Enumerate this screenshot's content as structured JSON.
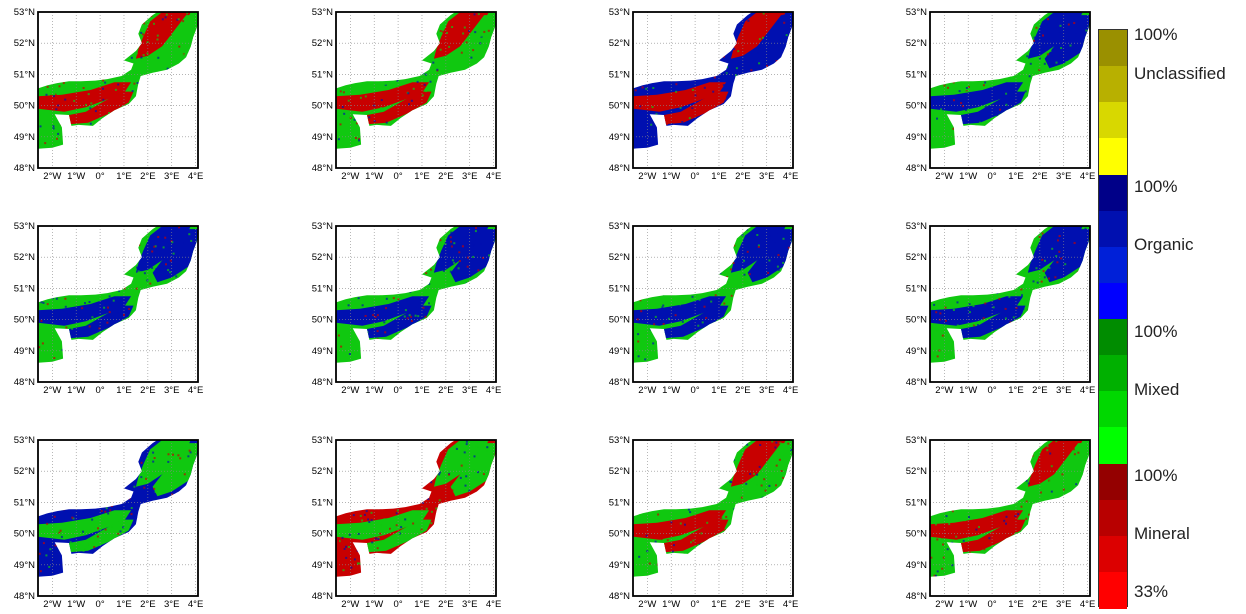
{
  "map_axes": {
    "lat_labels": [
      "53°N",
      "52°N",
      "51°N",
      "50°N",
      "49°N",
      "48°N"
    ],
    "lon_labels": [
      "2°W",
      "1°W",
      "0°",
      "1°E",
      "2°E",
      "3°E",
      "4°E"
    ]
  },
  "panels": [
    {
      "row": 1,
      "col": 1,
      "dominant": "mineral",
      "secondary": "mixed"
    },
    {
      "row": 1,
      "col": 2,
      "dominant": "mineral",
      "secondary": "mixed"
    },
    {
      "row": 1,
      "col": 3,
      "dominant": "mineral",
      "secondary": "organic"
    },
    {
      "row": 1,
      "col": 4,
      "dominant": "organic",
      "secondary": "mixed"
    },
    {
      "row": 2,
      "col": 1,
      "dominant": "organic",
      "secondary": "mixed"
    },
    {
      "row": 2,
      "col": 2,
      "dominant": "organic",
      "secondary": "mixed"
    },
    {
      "row": 2,
      "col": 3,
      "dominant": "organic",
      "secondary": "mixed"
    },
    {
      "row": 2,
      "col": 4,
      "dominant": "organic",
      "secondary": "mixed"
    },
    {
      "row": 3,
      "col": 1,
      "dominant": "mixed",
      "secondary": "organic"
    },
    {
      "row": 3,
      "col": 2,
      "dominant": "mixed",
      "secondary": "mineral"
    },
    {
      "row": 3,
      "col": 3,
      "dominant": "mineral",
      "secondary": "mixed"
    },
    {
      "row": 3,
      "col": 4,
      "dominant": "mineral",
      "secondary": "mixed"
    }
  ],
  "legend": {
    "labels": {
      "unclassified_top": "100%",
      "unclassified": "Unclassified",
      "organic_top": "100%",
      "organic": "Organic",
      "mixed_top": "100%",
      "mixed": "Mixed",
      "mineral_top": "100%",
      "mineral": "Mineral",
      "mineral_bottom": "33%"
    },
    "colors": {
      "unclassified": [
        "#9a9000",
        "#b8b000",
        "#d8d800",
        "#ffff00"
      ],
      "organic": [
        "#000088",
        "#0010b0",
        "#0020d8",
        "#0000ff"
      ],
      "mixed": [
        "#008c00",
        "#00b000",
        "#00d800",
        "#00ff00"
      ],
      "mineral": [
        "#940000",
        "#b80000",
        "#dc0000",
        "#ff0000"
      ]
    }
  },
  "class_colors": {
    "land": "#ffffff",
    "mineral": "#c80000",
    "organic": "#0010b0",
    "mixed": "#10c810",
    "frame": "#000000",
    "grid": "#888888"
  }
}
